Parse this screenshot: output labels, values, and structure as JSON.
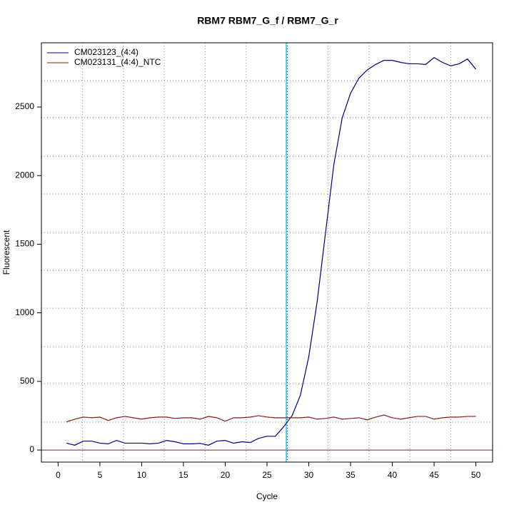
{
  "chart_data": {
    "type": "line",
    "title": "RBM7  RBM7_G_f / RBM7_G_r",
    "xlabel": "Cycle",
    "ylabel": "Fluorescent",
    "x": [
      1,
      2,
      3,
      4,
      5,
      6,
      7,
      8,
      9,
      10,
      11,
      12,
      13,
      14,
      15,
      16,
      17,
      18,
      19,
      20,
      21,
      22,
      23,
      24,
      25,
      26,
      27,
      28,
      29,
      30,
      31,
      32,
      33,
      34,
      35,
      36,
      37,
      38,
      39,
      40,
      41,
      42,
      43,
      44,
      45,
      46,
      47,
      48,
      49,
      50
    ],
    "series": [
      {
        "name": "CM023123_(4:4)",
        "color": "#000080",
        "values": [
          50,
          35,
          65,
          65,
          50,
          45,
          70,
          50,
          50,
          50,
          45,
          50,
          70,
          60,
          45,
          45,
          48,
          35,
          65,
          70,
          50,
          60,
          55,
          85,
          100,
          100,
          170,
          250,
          400,
          680,
          1080,
          1580,
          2080,
          2420,
          2600,
          2710,
          2770,
          2810,
          2840,
          2840,
          2825,
          2815,
          2815,
          2810,
          2860,
          2825,
          2800,
          2815,
          2850,
          2775
        ]
      },
      {
        "name": "CM023131_(4:4)_NTC",
        "color": "#8b1a1a",
        "values": [
          205,
          225,
          240,
          235,
          240,
          215,
          235,
          245,
          235,
          225,
          235,
          240,
          240,
          230,
          235,
          235,
          225,
          245,
          235,
          210,
          235,
          235,
          240,
          250,
          240,
          235,
          235,
          235,
          235,
          240,
          225,
          230,
          240,
          225,
          230,
          235,
          220,
          240,
          255,
          235,
          225,
          235,
          245,
          245,
          225,
          235,
          240,
          240,
          245,
          245
        ]
      }
    ],
    "xlim": [
      -2,
      52
    ],
    "ylim": [
      -88,
      2968
    ],
    "xticks": [
      0,
      5,
      10,
      15,
      20,
      25,
      30,
      35,
      40,
      45,
      50
    ],
    "yticks": [
      0,
      500,
      1000,
      1500,
      2000,
      2500
    ],
    "xgrid": [
      2.9,
      7.8,
      12.7,
      17.6,
      22.5,
      27.4,
      32.3,
      37.2,
      42.1,
      47.0
    ],
    "ygrid": [
      203,
      483,
      754,
      1034,
      1310,
      1585,
      1866,
      2141,
      2422,
      2692
    ],
    "vline": 27.3,
    "vline_color": "#00ced1",
    "hline": 0,
    "hline_color": "#8b1a1a",
    "legend": "top-left"
  }
}
